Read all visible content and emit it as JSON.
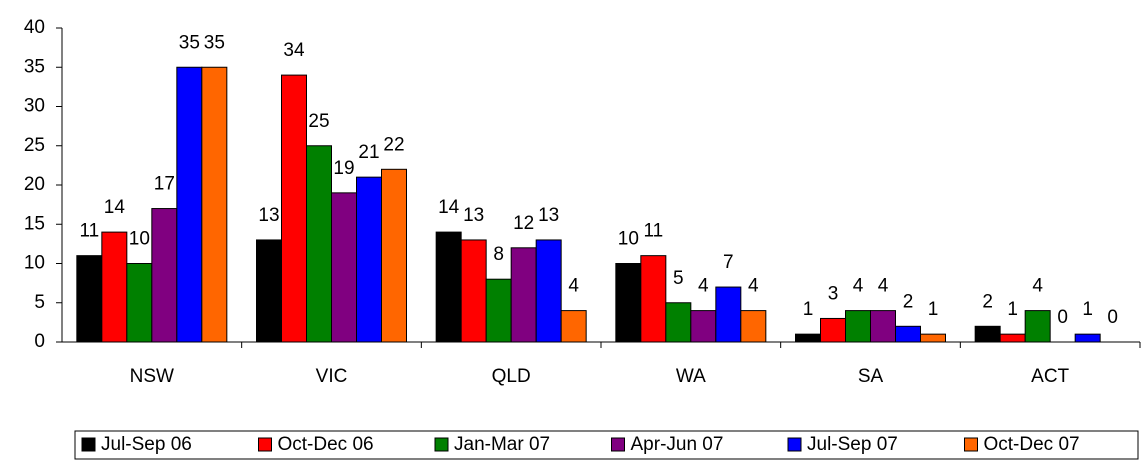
{
  "chart_data": {
    "type": "bar",
    "categories": [
      "NSW",
      "VIC",
      "QLD",
      "WA",
      "SA",
      "ACT"
    ],
    "series": [
      {
        "name": "Jul-Sep 06",
        "color": "#000000",
        "values": [
          11,
          13,
          14,
          10,
          1,
          2
        ]
      },
      {
        "name": "Oct-Dec 06",
        "color": "#ff0000",
        "values": [
          14,
          34,
          13,
          11,
          3,
          1
        ]
      },
      {
        "name": "Jan-Mar 07",
        "color": "#008000",
        "values": [
          10,
          25,
          8,
          5,
          4,
          4
        ]
      },
      {
        "name": "Apr-Jun 07",
        "color": "#800080",
        "values": [
          17,
          19,
          12,
          4,
          4,
          0
        ]
      },
      {
        "name": "Jul-Sep 07",
        "color": "#0000ff",
        "values": [
          35,
          21,
          13,
          7,
          2,
          1
        ]
      },
      {
        "name": "Oct-Dec 07",
        "color": "#ff6600",
        "values": [
          35,
          22,
          4,
          4,
          1,
          0
        ]
      }
    ],
    "ylim": [
      0,
      40
    ],
    "yticks": [
      0,
      5,
      10,
      15,
      20,
      25,
      30,
      35,
      40
    ],
    "grid": false,
    "legend": "bottom"
  }
}
